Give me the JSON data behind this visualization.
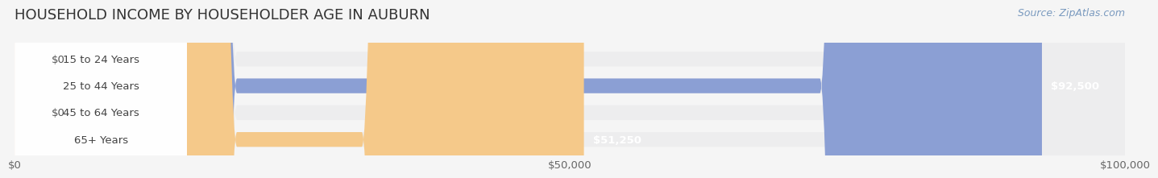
{
  "title": "HOUSEHOLD INCOME BY HOUSEHOLDER AGE IN AUBURN",
  "source": "Source: ZipAtlas.com",
  "categories": [
    "15 to 24 Years",
    "25 to 44 Years",
    "45 to 64 Years",
    "65+ Years"
  ],
  "values": [
    0,
    92500,
    0,
    51250
  ],
  "bar_colors": [
    "#6dcdc8",
    "#8b9fd4",
    "#f4a0b5",
    "#f5c98a"
  ],
  "label_colors": [
    "#6dcdc8",
    "#8b9fd4",
    "#f4a0b5",
    "#f5c98a"
  ],
  "track_color": "#ededee",
  "background_color": "#f5f5f5",
  "xlim": [
    0,
    100000
  ],
  "xticks": [
    0,
    50000,
    100000
  ],
  "xtick_labels": [
    "$0",
    "$50,000",
    "$100,000"
  ],
  "bar_height": 0.55,
  "title_fontsize": 13,
  "label_fontsize": 9.5,
  "value_fontsize": 9.5,
  "source_fontsize": 9
}
